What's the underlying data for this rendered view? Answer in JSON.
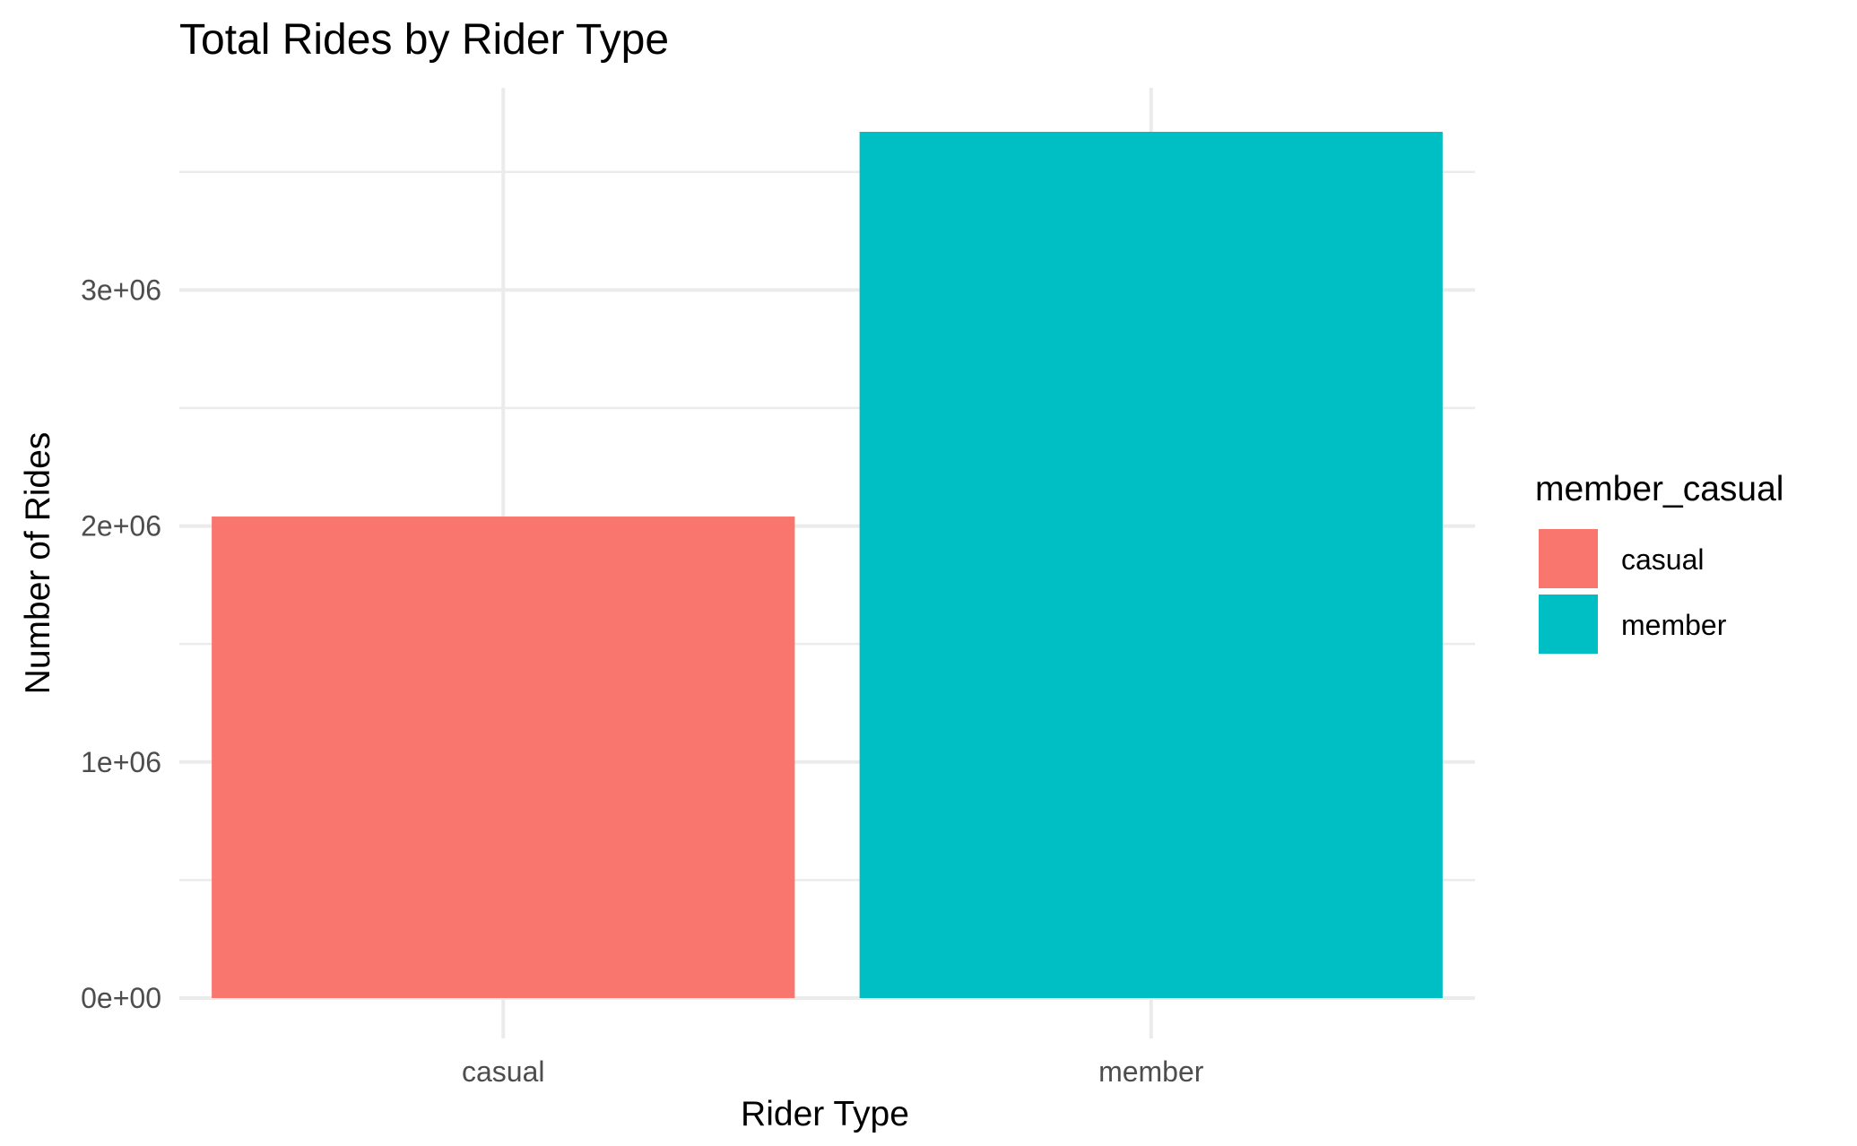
{
  "chart_data": {
    "type": "bar",
    "title": "Total Rides by Rider Type",
    "xlabel": "Rider Type",
    "ylabel": "Number of Rides",
    "categories": [
      "casual",
      "member"
    ],
    "values": [
      2040000,
      3670000
    ],
    "ylim": [
      0,
      3670000
    ],
    "yticks": [
      0,
      1000000,
      2000000,
      3000000
    ],
    "ytick_labels": [
      "0e+00",
      "1e+06",
      "2e+06",
      "3e+06"
    ],
    "grid": true,
    "legend": {
      "title": "member_casual",
      "position": "right",
      "entries": [
        "casual",
        "member"
      ]
    },
    "colors": [
      "#F8766D",
      "#00BFC4"
    ]
  }
}
